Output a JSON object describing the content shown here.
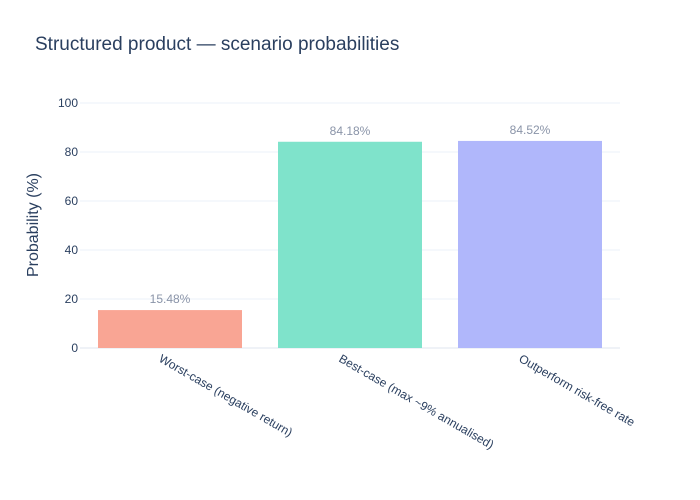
{
  "chart_data": {
    "type": "bar",
    "title": "Structured product — scenario probabilities",
    "xlabel": "",
    "ylabel": "Probability (%)",
    "ylim": [
      0,
      100
    ],
    "yticks": [
      0,
      20,
      40,
      60,
      80,
      100
    ],
    "categories": [
      "Worst-case (negative return)",
      "Best-case (max ~9% annualised)",
      "Outperform risk-free rate"
    ],
    "values": [
      15.48,
      84.18,
      84.52
    ],
    "data_labels": [
      "15.48%",
      "84.18%",
      "84.52%"
    ],
    "colors": [
      "#f9a594",
      "#7fe3cb",
      "#b0b7fb"
    ],
    "grid": true,
    "legend": "none"
  }
}
